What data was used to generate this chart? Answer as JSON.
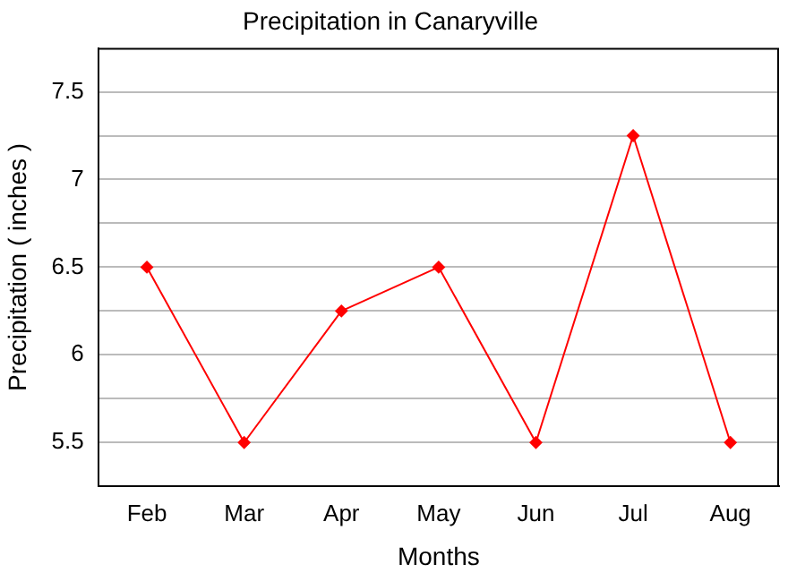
{
  "chart_data": {
    "type": "line",
    "title": "Precipitation in Canaryville",
    "xlabel": "Months",
    "ylabel": "Precipitation ( inches )",
    "categories": [
      "Feb",
      "Mar",
      "Apr",
      "May",
      "Jun",
      "Jul",
      "Aug"
    ],
    "series": [
      {
        "color": "#ff0000",
        "values": [
          6.5,
          5.5,
          6.25,
          6.5,
          5.5,
          7.25,
          5.5
        ]
      }
    ],
    "ylim": [
      5.25,
      7.75
    ],
    "yticks": [
      5.5,
      {
        "value": 5.75,
        "label": null
      },
      6,
      {
        "value": 6.25,
        "label": null
      },
      6.5,
      {
        "value": 6.75,
        "label": null
      },
      7,
      {
        "value": 7.25,
        "label": null
      },
      7.5
    ],
    "grid": "y",
    "legend": false,
    "marker": "diamond",
    "line_style": "solid"
  }
}
